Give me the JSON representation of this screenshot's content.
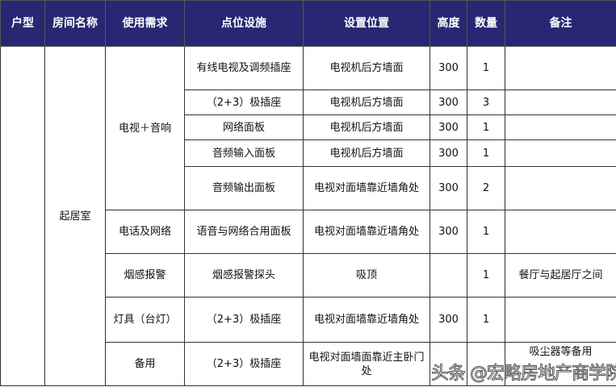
{
  "headers": [
    "户型",
    "房间名称",
    "使用需求",
    "点位设施",
    "设置位置",
    "高度",
    "数量",
    "备注"
  ],
  "unit_type": "",
  "room": "起居室",
  "groups": {
    "tv": "电视＋音响",
    "phone": "电话及网络",
    "smoke": "烟感报警",
    "lamp": "灯具（台灯）",
    "spare": "备用"
  },
  "rows": [
    {
      "facility": "有线电视及调频插座",
      "location": "电视机后方墙面",
      "height": "300",
      "qty": "1",
      "note": ""
    },
    {
      "facility": "（2+3）极插座",
      "location": "电视机后方墙面",
      "height": "300",
      "qty": "3",
      "note": ""
    },
    {
      "facility": "网络面板",
      "location": "电视机后方墙面",
      "height": "300",
      "qty": "1",
      "note": ""
    },
    {
      "facility": "音频输入面板",
      "location": "电视机后方墙面",
      "height": "300",
      "qty": "1",
      "note": ""
    },
    {
      "facility": "音频输出面板",
      "location": "电视对面墙靠近墙角处",
      "height": "300",
      "qty": "2",
      "note": ""
    },
    {
      "facility": "语音与网络合用面板",
      "location": "电视对面墙靠近墙角处",
      "height": "300",
      "qty": "1",
      "note": ""
    },
    {
      "facility": "烟感报警探头",
      "location": "吸顶",
      "height": "",
      "qty": "1",
      "note": "餐厅与起居厅之间"
    },
    {
      "facility": "（2+3）极插座",
      "location": "电视对面墙靠近墙角处",
      "height": "300",
      "qty": "1",
      "note": ""
    },
    {
      "facility": "（2+3）极插座",
      "location": "电视对面墙面靠近主卧门处",
      "height": "",
      "qty": "",
      "note": "吸尘器等备用"
    }
  ],
  "watermark": "头条 @宏略房地产商学院"
}
